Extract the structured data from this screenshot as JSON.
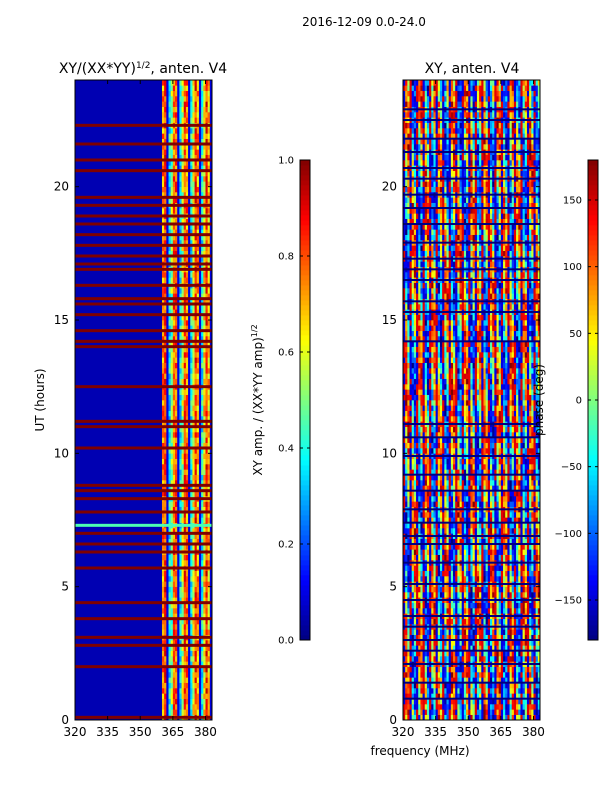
{
  "figure": {
    "suptitle": "2016-12-09 0.0-24.0",
    "shared_xlabel": "frequency (MHz)"
  },
  "colors": {
    "jet_stops": [
      "#00007f",
      "#0000ff",
      "#007fff",
      "#00ffff",
      "#7fff7f",
      "#ffff00",
      "#ff7f00",
      "#ff0000",
      "#7f0000"
    ],
    "background": "#ffffff",
    "axis": "#000000"
  },
  "chart_data": [
    {
      "type": "heatmap",
      "name": "amplitude",
      "title_main": "XY/(XX*YY)",
      "title_exp": "1/2",
      "title_tail": ", anten. V4",
      "xlabel": "",
      "ylabel": "UT (hours)",
      "xlim": [
        320,
        383
      ],
      "ylim": [
        0,
        24
      ],
      "xticks": [
        "320",
        "335",
        "350",
        "365",
        "380"
      ],
      "xtick_values": [
        320,
        335,
        350,
        365,
        380
      ],
      "yticks": [
        "0",
        "5",
        "10",
        "15",
        "20"
      ],
      "ytick_values": [
        0,
        5,
        10,
        15,
        20
      ],
      "colorbar": {
        "label_main": "XY amp. / (XX*YY amp)",
        "label_exp": "1/2",
        "range": [
          0.0,
          1.0
        ],
        "ticks": [
          "0.0",
          "0.2",
          "0.4",
          "0.6",
          "0.8",
          "1.0"
        ],
        "tick_values": [
          0.0,
          0.2,
          0.4,
          0.6,
          0.8,
          1.0
        ]
      },
      "background_value": 0.05,
      "band_start_mhz": 360,
      "saturated_hours": [
        0.1,
        2.0,
        2.8,
        3.1,
        3.8,
        4.4,
        5.7,
        6.3,
        6.6,
        7.0,
        7.8,
        8.3,
        8.6,
        8.8,
        10.2,
        11.0,
        11.2,
        12.5,
        14.0,
        14.2,
        14.6,
        15.2,
        15.6,
        15.8,
        16.3,
        16.9,
        17.1,
        17.4,
        17.8,
        18.2,
        18.6,
        18.9,
        19.3,
        19.6,
        20.6,
        21.0,
        21.6,
        22.3
      ],
      "bright_line_hour": 7.3
    },
    {
      "type": "heatmap",
      "name": "phase",
      "title_main": "XY, anten. V4",
      "xlabel": "frequency (MHz)",
      "ylabel": "",
      "xlim": [
        320,
        383
      ],
      "ylim": [
        0,
        24
      ],
      "xticks": [
        "320",
        "335",
        "350",
        "365",
        "380"
      ],
      "xtick_values": [
        320,
        335,
        350,
        365,
        380
      ],
      "yticks": [
        "0",
        "5",
        "10",
        "15",
        "20"
      ],
      "ytick_values": [
        0,
        5,
        10,
        15,
        20
      ],
      "colorbar": {
        "label": "phase (deg)",
        "range": [
          -180,
          180
        ],
        "ticks": [
          "−150",
          "−100",
          "−50",
          "0",
          "50",
          "100",
          "150"
        ],
        "tick_values": [
          -150,
          -100,
          -50,
          0,
          50,
          100,
          150
        ]
      },
      "flag_hours": [
        0.8,
        1.4,
        2.1,
        2.6,
        3.0,
        3.5,
        3.9,
        4.5,
        5.1,
        5.9,
        6.6,
        6.9,
        7.4,
        7.9,
        8.6,
        9.2,
        9.9,
        10.6,
        11.1,
        14.2,
        15.3,
        15.7,
        16.5,
        16.9,
        17.3,
        17.9,
        18.6,
        19.2,
        19.7,
        20.3,
        20.7,
        21.3,
        21.8,
        22.5,
        22.9
      ]
    }
  ]
}
